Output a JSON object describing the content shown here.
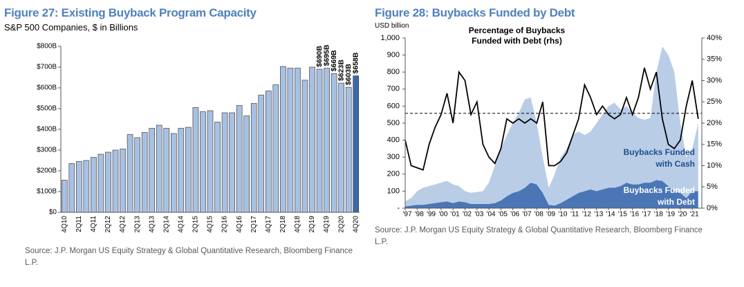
{
  "chart_data": [
    {
      "type": "bar",
      "title": "Figure 27: Existing Buyback Program Capacity",
      "subtitle": "S&P 500 Companies, $ in Billions",
      "source": "Source: J.P. Morgan US Equity Strategy & Global Quantitative Research, Bloomberg Finance L.P.",
      "categories": [
        "4Q10",
        null,
        "2Q11",
        null,
        "4Q11",
        null,
        "2Q12",
        null,
        "4Q12",
        null,
        "2Q13",
        null,
        "4Q13",
        null,
        "2Q14",
        null,
        "4Q14",
        null,
        "2Q15",
        null,
        "4Q15",
        null,
        "2Q16",
        null,
        "4Q16",
        null,
        "2Q17",
        null,
        "4Q17",
        null,
        "2Q18",
        null,
        "4Q18",
        null,
        "2Q19",
        null,
        "4Q19",
        null,
        "2Q20",
        null,
        "4Q20"
      ],
      "values": [
        155,
        235,
        245,
        250,
        265,
        280,
        290,
        300,
        305,
        375,
        360,
        385,
        405,
        420,
        405,
        380,
        405,
        410,
        505,
        485,
        490,
        435,
        480,
        480,
        515,
        465,
        525,
        565,
        585,
        615,
        703,
        695,
        695,
        637,
        700,
        690,
        695,
        669,
        623,
        603,
        658
      ],
      "value_labels": [
        null,
        null,
        null,
        null,
        null,
        null,
        null,
        null,
        null,
        null,
        null,
        null,
        null,
        null,
        null,
        null,
        null,
        null,
        null,
        null,
        null,
        null,
        null,
        null,
        null,
        null,
        null,
        null,
        null,
        null,
        null,
        null,
        null,
        null,
        null,
        "$690B",
        "$695B",
        "$669B",
        "$623B",
        "$603B",
        "$658B"
      ],
      "colors": [
        "#a8c0e2",
        "#a8c0e2",
        "#a8c0e2",
        "#a8c0e2",
        "#a8c0e2",
        "#a8c0e2",
        "#a8c0e2",
        "#a8c0e2",
        "#a8c0e2",
        "#a8c0e2",
        "#a8c0e2",
        "#a8c0e2",
        "#a8c0e2",
        "#a8c0e2",
        "#a8c0e2",
        "#a8c0e2",
        "#a8c0e2",
        "#a8c0e2",
        "#a8c0e2",
        "#a8c0e2",
        "#a8c0e2",
        "#a8c0e2",
        "#a8c0e2",
        "#a8c0e2",
        "#a8c0e2",
        "#a8c0e2",
        "#a8c0e2",
        "#a8c0e2",
        "#a8c0e2",
        "#a8c0e2",
        "#a8c0e2",
        "#a8c0e2",
        "#a8c0e2",
        "#a8c0e2",
        "#a8c0e2",
        "#a8c0e2",
        "#a8c0e2",
        "#a8c0e2",
        "#a8c0e2",
        "#a8c0e2",
        "#3c6aa8"
      ],
      "ylim": [
        0,
        800
      ],
      "yticks": [
        {
          "value": 0,
          "label": "$0"
        },
        {
          "value": 100,
          "label": "$100B"
        },
        {
          "value": 200,
          "label": "$200B"
        },
        {
          "value": 300,
          "label": "$300B"
        },
        {
          "value": 400,
          "label": "$400B"
        },
        {
          "value": 500,
          "label": "$500B"
        },
        {
          "value": 600,
          "label": "$600B"
        },
        {
          "value": 700,
          "label": "$700B"
        },
        {
          "value": 800,
          "label": "$800B"
        }
      ],
      "grid": false
    },
    {
      "type": "area",
      "title": "Figure 28: Buybacks Funded by Debt",
      "ylabel": "USD billion",
      "source": "Source: J.P. Morgan US Equity Strategy & Global Quantitative Research, Bloomberg Finance L.P.",
      "annotations": [
        "Percentage of Buybacks Funded with Debt (rhs)"
      ],
      "stacked": true,
      "x": [
        1997,
        1997.5,
        1998,
        1998.5,
        1999,
        1999.5,
        2000,
        2000.5,
        2001,
        2001.5,
        2002,
        2002.5,
        2003,
        2003.5,
        2004,
        2004.5,
        2005,
        2005.5,
        2006,
        2006.5,
        2007,
        2007.5,
        2008,
        2008.5,
        2009,
        2009.5,
        2010,
        2010.5,
        2011,
        2011.5,
        2012,
        2012.5,
        2013,
        2013.5,
        2014,
        2014.5,
        2015,
        2015.5,
        2016,
        2016.5,
        2017,
        2017.5,
        2018,
        2018.5,
        2019,
        2019.5,
        2020,
        2020.5,
        2021,
        2021.5
      ],
      "series": [
        {
          "name": "Buybacks Funded with Debt",
          "color": "#4a76b6",
          "label_color": "#ffffff",
          "values": [
            10,
            15,
            20,
            20,
            25,
            30,
            35,
            40,
            30,
            40,
            35,
            25,
            25,
            25,
            25,
            30,
            45,
            70,
            90,
            100,
            120,
            150,
            140,
            90,
            20,
            15,
            30,
            50,
            70,
            90,
            100,
            110,
            100,
            110,
            120,
            120,
            130,
            150,
            140,
            140,
            150,
            150,
            165,
            160,
            130,
            100,
            90,
            60,
            100,
            100
          ]
        },
        {
          "name": "Buybacks Funded with Cash",
          "color": "#b9cde7",
          "label_color": "#1f4e8c",
          "values": [
            30,
            45,
            80,
            100,
            105,
            110,
            115,
            120,
            110,
            90,
            65,
            65,
            70,
            75,
            125,
            220,
            305,
            360,
            410,
            460,
            520,
            500,
            360,
            210,
            100,
            185,
            270,
            300,
            360,
            360,
            330,
            340,
            400,
            440,
            480,
            500,
            450,
            450,
            420,
            390,
            370,
            380,
            635,
            790,
            770,
            700,
            410,
            240,
            250,
            400
          ]
        },
        {
          "name": "Percentage of Buybacks Funded with Debt (rhs)",
          "kind": "line",
          "axis": "y2",
          "color": "#000000",
          "values": [
            16,
            10,
            9.5,
            9,
            15,
            19,
            22,
            27,
            20,
            32,
            30,
            22,
            25,
            15,
            12,
            10.5,
            14,
            21,
            20,
            21,
            20,
            21,
            20,
            25,
            10,
            10,
            11,
            13,
            17,
            21,
            29,
            26,
            22,
            24,
            22,
            21,
            22,
            26,
            22,
            26,
            33,
            28,
            32,
            21,
            15,
            14,
            16,
            24,
            30,
            21
          ]
        }
      ],
      "y2_reference": 22.3,
      "xlim": [
        1997,
        2021.8
      ],
      "xticks": [
        {
          "value": 1997,
          "label": "'97"
        },
        {
          "value": 1998,
          "label": "'98"
        },
        {
          "value": 1999,
          "label": "'99"
        },
        {
          "value": 2000,
          "label": "'00"
        },
        {
          "value": 2001,
          "label": "'01"
        },
        {
          "value": 2002,
          "label": "'02"
        },
        {
          "value": 2003,
          "label": "'03"
        },
        {
          "value": 2004,
          "label": "'04"
        },
        {
          "value": 2005,
          "label": "'05"
        },
        {
          "value": 2006,
          "label": "'06"
        },
        {
          "value": 2007,
          "label": "'07"
        },
        {
          "value": 2008,
          "label": "'08"
        },
        {
          "value": 2009,
          "label": "'09"
        },
        {
          "value": 2010,
          "label": "'10"
        },
        {
          "value": 2011,
          "label": "'11"
        },
        {
          "value": 2012,
          "label": "'12"
        },
        {
          "value": 2013,
          "label": "'13"
        },
        {
          "value": 2014,
          "label": "'14"
        },
        {
          "value": 2015,
          "label": "'15"
        },
        {
          "value": 2016,
          "label": "'16"
        },
        {
          "value": 2017,
          "label": "'17"
        },
        {
          "value": 2018,
          "label": "'18"
        },
        {
          "value": 2019,
          "label": "'19"
        },
        {
          "value": 2020,
          "label": "'20"
        },
        {
          "value": 2021,
          "label": "'21"
        }
      ],
      "ylim": [
        0,
        1000
      ],
      "yticks": [
        {
          "value": 0,
          "label": "-"
        },
        100,
        200,
        300,
        400,
        500,
        600,
        700,
        800,
        900,
        {
          "value": 1000,
          "label": "1,000"
        }
      ],
      "y2lim": [
        0,
        40
      ],
      "y2ticks": [
        {
          "value": 0,
          "label": "0%"
        },
        {
          "value": 5,
          "label": "5%"
        },
        {
          "value": 10,
          "label": "10%"
        },
        {
          "value": 15,
          "label": "15%"
        },
        {
          "value": 20,
          "label": "20%"
        },
        {
          "value": 25,
          "label": "25%"
        },
        {
          "value": 30,
          "label": "30%"
        },
        {
          "value": 35,
          "label": "35%"
        },
        {
          "value": 40,
          "label": "40%"
        }
      ],
      "grid": false
    }
  ]
}
